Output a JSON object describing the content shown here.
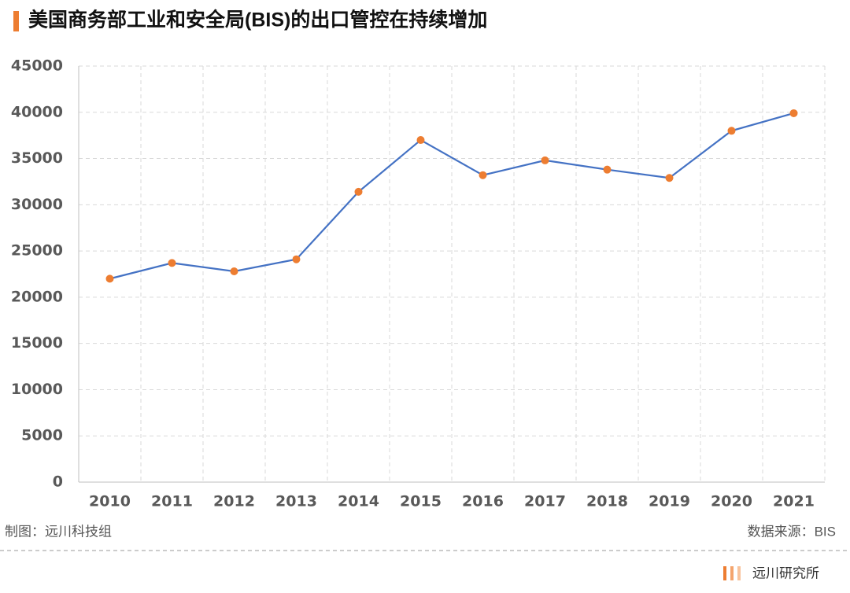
{
  "chart_data": {
    "type": "line",
    "title": "美国商务部工业和安全局(BIS)的出口管控在持续增加",
    "categories": [
      "2010",
      "2011",
      "2012",
      "2013",
      "2014",
      "2015",
      "2016",
      "2017",
      "2018",
      "2019",
      "2020",
      "2021"
    ],
    "values": [
      22000,
      23700,
      22800,
      24100,
      31400,
      37000,
      33200,
      34800,
      33800,
      32900,
      38000,
      39900
    ],
    "color": "#4472c4",
    "marker_color": "#ed7d31",
    "ylim": [
      0,
      45000
    ],
    "yticks": [
      0,
      5000,
      10000,
      15000,
      20000,
      25000,
      30000,
      35000,
      40000,
      45000
    ],
    "grid": true
  },
  "footer": {
    "credit": "制图：远川科技组",
    "source": "数据来源：BIS",
    "brand": "远川研究所"
  }
}
